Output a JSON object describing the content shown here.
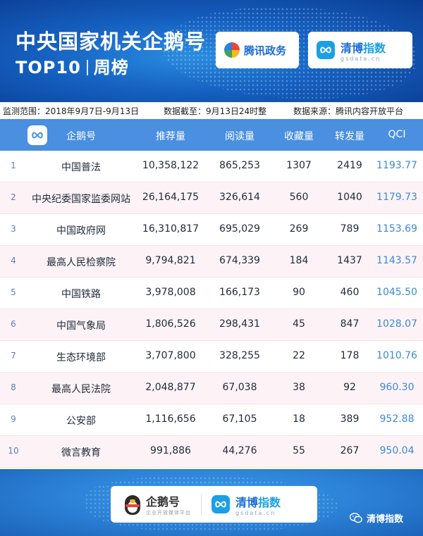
{
  "header": {
    "title_line1": "中央国家机关企鹅号",
    "title_line2_a": "TOP10",
    "title_line2_b": "周榜",
    "partner_logo_text": "腾讯政务",
    "brand_name_a": "清博",
    "brand_name_b": "指数",
    "brand_url": "gsdata.cn"
  },
  "info": {
    "range": "监测范围：2018年9月7日-9月13日",
    "cutoff": "数据截至：9月13日24时整",
    "source": "数据来源：腾讯内容开放平台"
  },
  "table": {
    "columns": [
      "企鹅号",
      "推荐量",
      "阅读量",
      "收藏量",
      "转发量",
      "QCI"
    ],
    "rows": [
      {
        "rank": "1",
        "name": "中国普法",
        "rec": "10,358,122",
        "read": "865,253",
        "fav": "1307",
        "share": "2419",
        "qci": "1193.77"
      },
      {
        "rank": "2",
        "name": "中央纪委国家监委网站",
        "rec": "26,164,175",
        "read": "326,614",
        "fav": "560",
        "share": "1040",
        "qci": "1179.73"
      },
      {
        "rank": "3",
        "name": "中国政府网",
        "rec": "16,310,817",
        "read": "695,029",
        "fav": "269",
        "share": "789",
        "qci": "1153.69"
      },
      {
        "rank": "4",
        "name": "最高人民检察院",
        "rec": "9,794,821",
        "read": "674,339",
        "fav": "184",
        "share": "1437",
        "qci": "1143.57"
      },
      {
        "rank": "5",
        "name": "中国铁路",
        "rec": "3,978,008",
        "read": "166,173",
        "fav": "90",
        "share": "460",
        "qci": "1045.50"
      },
      {
        "rank": "6",
        "name": "中国气象局",
        "rec": "1,806,526",
        "read": "298,431",
        "fav": "45",
        "share": "847",
        "qci": "1028.07"
      },
      {
        "rank": "7",
        "name": "生态环境部",
        "rec": "3,707,800",
        "read": "328,255",
        "fav": "22",
        "share": "178",
        "qci": "1010.76"
      },
      {
        "rank": "8",
        "name": "最高人民法院",
        "rec": "2,048,877",
        "read": "67,038",
        "fav": "38",
        "share": "92",
        "qci": "960.30"
      },
      {
        "rank": "9",
        "name": "公安部",
        "rec": "1,116,656",
        "read": "67,105",
        "fav": "18",
        "share": "389",
        "qci": "952.88"
      },
      {
        "rank": "10",
        "name": "微言教育",
        "rec": "991,886",
        "read": "44,276",
        "fav": "55",
        "share": "267",
        "qci": "950.04"
      }
    ]
  },
  "footer": {
    "qe_name": "企鹅号",
    "qe_sub": "企业开放媒体平台",
    "brand_name_a": "清博",
    "brand_name_b": "指数",
    "brand_url": "gsdata.cn",
    "wechat_account": "清博指数"
  },
  "colors": {
    "header_bg": "#1560c0",
    "table_header_bg": "#4a8fe0",
    "row_alt_bg": "#fdf3f6",
    "qci_text": "#3b89d9"
  }
}
